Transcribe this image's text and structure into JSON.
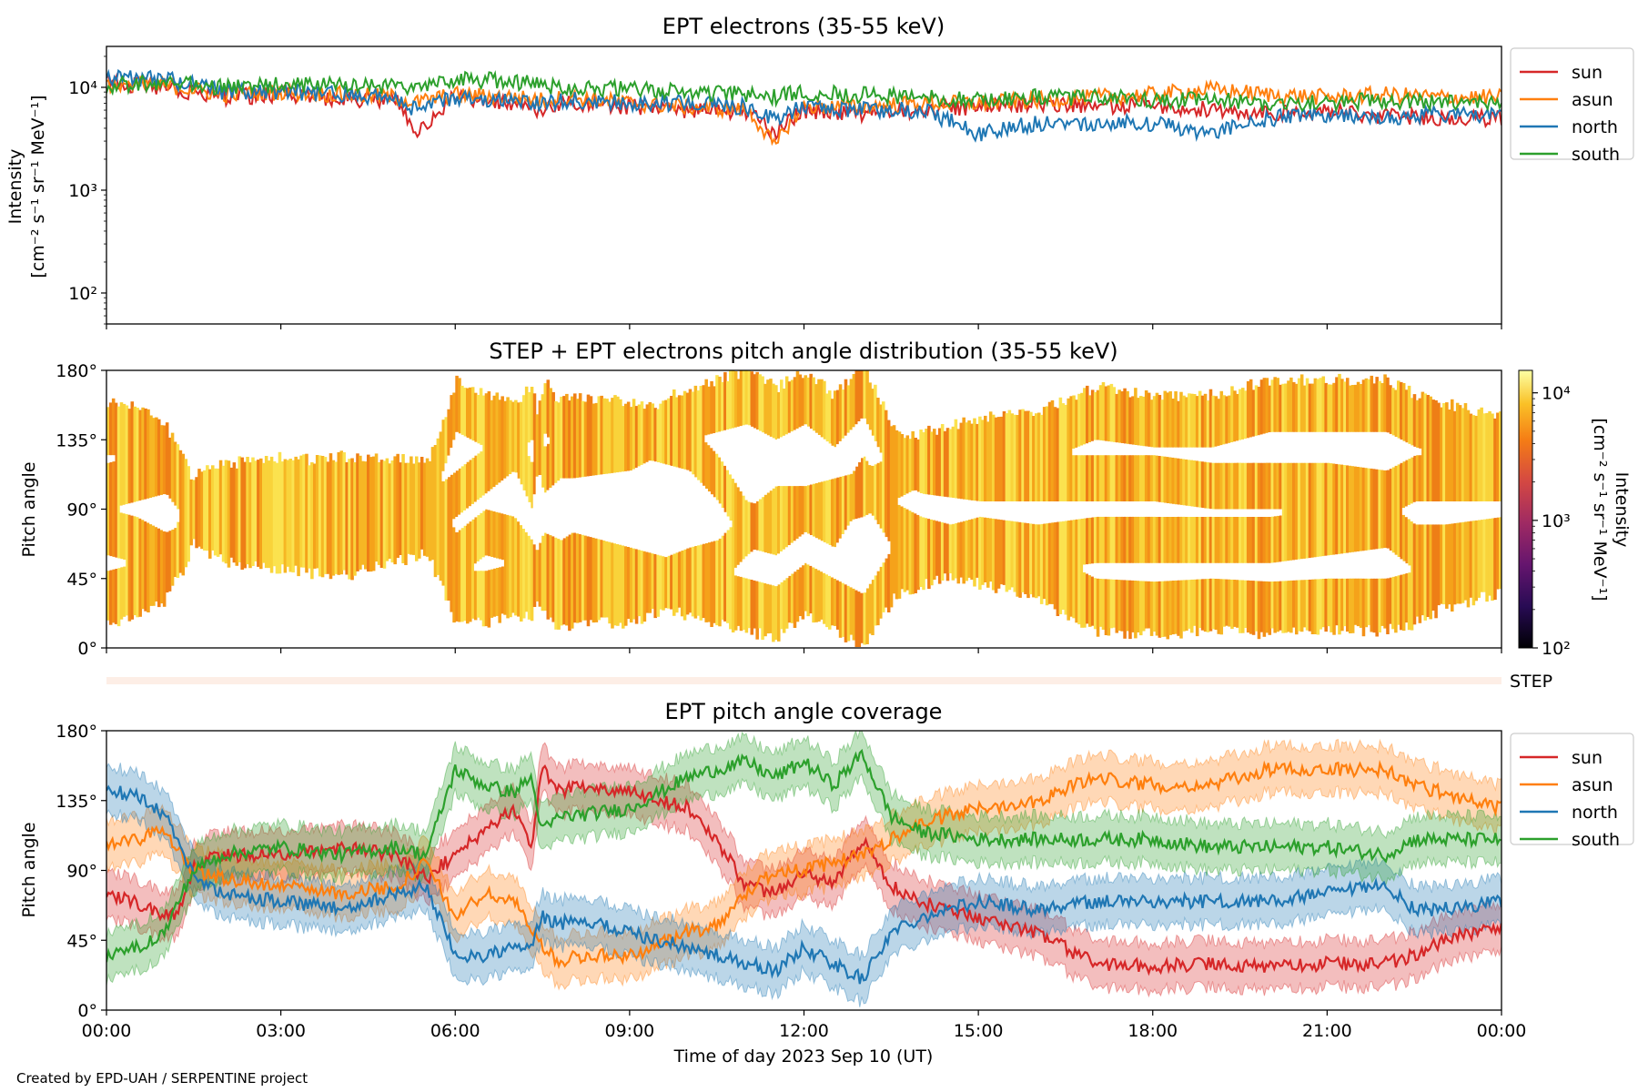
{
  "figure": {
    "footer": "Created by EPD-UAH / SERPENTINE project"
  },
  "colors": {
    "sun": "#d62728",
    "asun": "#ff7f0e",
    "north": "#1f77b4",
    "south": "#2ca02c"
  },
  "chart_data": [
    {
      "type": "line",
      "title": "EPT electrons (35-55 keV)",
      "ylabel_line1": "Intensity",
      "ylabel_line2": "[cm⁻² s⁻¹ sr⁻¹ MeV⁻¹]",
      "yscale": "log",
      "ylim": [
        50,
        25000
      ],
      "yticks": [
        "10²",
        "10³",
        "10⁴"
      ],
      "ytick_values": [
        100,
        1000,
        10000
      ],
      "x_hours": [
        0,
        1,
        2,
        3,
        4,
        5,
        5.3,
        6,
        7,
        7.5,
        8,
        9,
        10,
        11,
        11.5,
        12,
        13,
        14,
        15,
        16,
        17,
        18,
        19,
        20,
        21,
        22,
        23,
        24
      ],
      "legend": [
        "sun",
        "asun",
        "north",
        "south"
      ],
      "legend_loc": "outside right",
      "series": [
        {
          "name": "sun",
          "values": [
            11000,
            10000,
            8000,
            8500,
            7800,
            7500,
            3000,
            8000,
            7000,
            6000,
            7000,
            6500,
            6000,
            5800,
            3500,
            6000,
            5500,
            6000,
            6500,
            7000,
            6500,
            6800,
            6000,
            5500,
            5800,
            5200,
            5000,
            5000
          ]
        },
        {
          "name": "asun",
          "values": [
            10500,
            10500,
            8500,
            9000,
            8500,
            8000,
            7000,
            8500,
            8000,
            7500,
            8000,
            7000,
            6500,
            6000,
            2500,
            6500,
            6500,
            7000,
            7000,
            7500,
            8000,
            8500,
            9500,
            8500,
            8000,
            8500,
            8000,
            8000
          ]
        },
        {
          "name": "north",
          "values": [
            12500,
            12000,
            9000,
            9000,
            8500,
            8000,
            6000,
            8000,
            7500,
            7000,
            7500,
            7000,
            7000,
            6500,
            5000,
            6500,
            6000,
            6000,
            3500,
            4500,
            4500,
            4500,
            3500,
            5000,
            5500,
            5000,
            5500,
            5500
          ]
        },
        {
          "name": "south",
          "values": [
            10500,
            11000,
            10000,
            10500,
            10500,
            10000,
            9500,
            12000,
            11500,
            10500,
            10000,
            9500,
            9000,
            8500,
            8000,
            9000,
            8500,
            8000,
            7500,
            8000,
            8000,
            7500,
            7500,
            7000,
            7000,
            7500,
            7000,
            7000
          ]
        }
      ]
    },
    {
      "type": "heatmap",
      "title": "STEP + EPT electrons pitch angle distribution (35-55 keV)",
      "ylabel": "Pitch angle",
      "yticks": [
        "0°",
        "45°",
        "90°",
        "135°",
        "180°"
      ],
      "ytick_values": [
        0,
        45,
        90,
        135,
        180
      ],
      "ylim": [
        0,
        180
      ],
      "colorbar_label_line1": "Intensity",
      "colorbar_label_line2": "[cm⁻² s⁻¹ sr⁻¹ MeV⁻¹]",
      "colorbar_ticks": [
        "10²",
        "10³",
        "10⁴"
      ],
      "colorbar_tick_values": [
        100,
        1000,
        10000
      ],
      "colorbar_scale": "log",
      "colorbar_range": [
        100,
        15000
      ],
      "colormap": "inferno",
      "coverage_note": "intensity bands between the four sector pitch-angle traces"
    },
    {
      "type": "line",
      "title": "STEP",
      "note": "empty STEP coverage strip"
    },
    {
      "type": "area",
      "title": "EPT pitch angle coverage",
      "ylabel": "Pitch angle",
      "xlabel": "Time of day 2023 Sep 10 (UT)",
      "xticks": [
        "00:00",
        "03:00",
        "06:00",
        "09:00",
        "12:00",
        "15:00",
        "18:00",
        "21:00",
        "00:00"
      ],
      "xtick_values": [
        0,
        3,
        6,
        9,
        12,
        15,
        18,
        21,
        24
      ],
      "xlim": [
        0,
        24
      ],
      "yticks": [
        "0°",
        "45°",
        "90°",
        "135°",
        "180°"
      ],
      "ytick_values": [
        0,
        45,
        90,
        135,
        180
      ],
      "ylim": [
        0,
        180
      ],
      "band_halfwidth_deg": 15,
      "legend": [
        "sun",
        "asun",
        "north",
        "south"
      ],
      "legend_loc": "outside right",
      "x_hours": [
        0,
        0.5,
        1,
        1.3,
        1.5,
        2,
        3,
        4,
        5,
        5.5,
        6,
        6.5,
        7,
        7.3,
        7.5,
        7.8,
        8,
        9,
        10,
        10.5,
        11,
        11.5,
        12,
        12.5,
        13,
        13.5,
        14,
        15,
        16,
        17,
        18,
        19,
        20,
        21,
        22,
        22.5,
        23,
        24
      ],
      "series": [
        {
          "name": "sun",
          "values": [
            75,
            70,
            60,
            65,
            95,
            100,
            100,
            105,
            100,
            85,
            100,
            115,
            130,
            105,
            155,
            140,
            145,
            140,
            130,
            110,
            80,
            75,
            90,
            80,
            110,
            80,
            70,
            60,
            50,
            30,
            28,
            30,
            28,
            30,
            30,
            35,
            45,
            55
          ]
        },
        {
          "name": "asun",
          "values": [
            105,
            110,
            115,
            100,
            90,
            85,
            80,
            75,
            80,
            95,
            60,
            75,
            70,
            55,
            40,
            30,
            35,
            35,
            50,
            55,
            75,
            90,
            90,
            95,
            100,
            110,
            120,
            130,
            135,
            150,
            145,
            145,
            155,
            155,
            155,
            145,
            140,
            130
          ]
        },
        {
          "name": "north",
          "values": [
            140,
            140,
            125,
            105,
            85,
            75,
            70,
            65,
            75,
            80,
            35,
            35,
            40,
            40,
            60,
            55,
            60,
            50,
            40,
            35,
            30,
            25,
            40,
            30,
            20,
            50,
            60,
            70,
            65,
            70,
            70,
            70,
            70,
            75,
            80,
            65,
            65,
            70
          ]
        },
        {
          "name": "south",
          "values": [
            35,
            40,
            50,
            75,
            90,
            100,
            105,
            100,
            105,
            100,
            155,
            145,
            140,
            150,
            115,
            125,
            125,
            130,
            150,
            155,
            160,
            150,
            160,
            145,
            165,
            125,
            115,
            110,
            110,
            110,
            110,
            105,
            105,
            105,
            100,
            110,
            110,
            110
          ]
        }
      ]
    }
  ]
}
